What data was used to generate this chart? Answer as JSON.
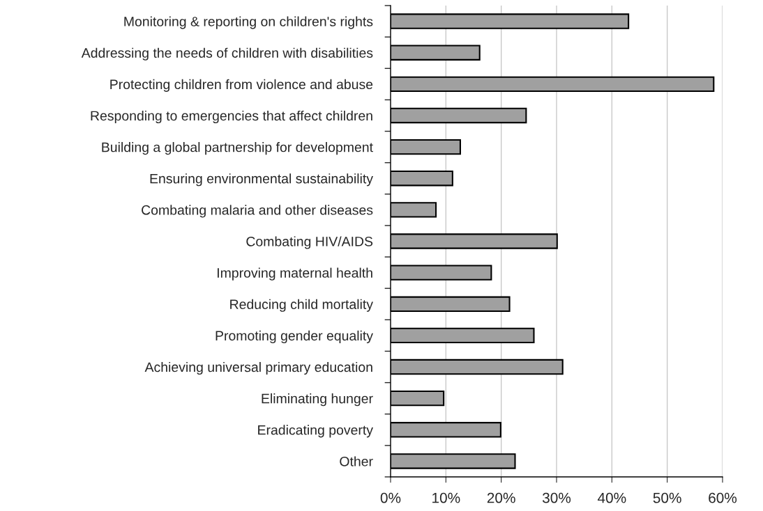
{
  "chart_data": {
    "type": "bar",
    "orientation": "horizontal",
    "categories": [
      "Monitoring & reporting on children's rights",
      "Addressing the needs of children with disabilities",
      "Protecting children from violence and abuse",
      "Responding to emergencies that affect children",
      "Building a global partnership for development",
      "Ensuring environmental sustainability",
      "Combating malaria and other diseases",
      "Combating HIV/AIDS",
      "Improving maternal health",
      "Reducing child mortality",
      "Promoting gender equality",
      "Achieving universal primary education",
      "Eliminating hunger",
      "Eradicating poverty",
      "Other"
    ],
    "values": [
      43.0,
      16.1,
      58.4,
      24.5,
      12.6,
      11.2,
      8.2,
      30.1,
      18.2,
      21.5,
      25.9,
      31.1,
      9.6,
      19.9,
      22.5
    ],
    "color": "#a0a0a0",
    "xlim": [
      0,
      60
    ],
    "xticks": [
      {
        "value": 0,
        "label": "0%"
      },
      {
        "value": 10,
        "label": "10%"
      },
      {
        "value": 20,
        "label": "20%"
      },
      {
        "value": 30,
        "label": "30%"
      },
      {
        "value": 40,
        "label": "40%"
      },
      {
        "value": 50,
        "label": "50%"
      },
      {
        "value": 60,
        "label": "60%"
      }
    ],
    "grid": "x",
    "legend": false
  }
}
